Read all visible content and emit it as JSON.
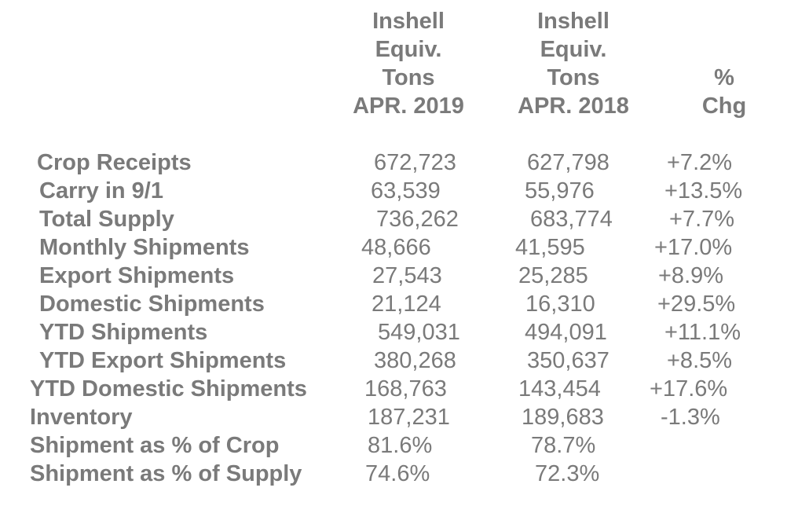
{
  "headers": {
    "col2019": [
      "Inshell",
      "Equiv.",
      "Tons",
      "APR. 2019"
    ],
    "col2018": [
      "Inshell",
      "Equiv.",
      "Tons",
      "APR. 2018"
    ],
    "chg": [
      "%",
      "Chg"
    ]
  },
  "rows": [
    {
      "label": "Crop Receipts",
      "v2019": "672,723",
      "v2018": "627,798",
      "chg": "+7.2%"
    },
    {
      "label": "Carry in 9/1",
      "v2019": "63,539",
      "v2018": "55,976",
      "chg": "+13.5%"
    },
    {
      "label": "Total Supply",
      "v2019": "736,262",
      "v2018": "683,774",
      "chg": "+7.7%"
    },
    {
      "label": "Monthly Shipments",
      "v2019": "48,666",
      "v2018": "41,595",
      "chg": "+17.0%"
    },
    {
      "label": "Export Shipments",
      "v2019": "27,543",
      "v2018": "25,285",
      "chg": "+8.9%"
    },
    {
      "label": "Domestic Shipments",
      "v2019": "21,124",
      "v2018": "16,310",
      "chg": "+29.5%"
    },
    {
      "label": "YTD Shipments",
      "v2019": "549,031",
      "v2018": "494,091",
      "chg": "+11.1%"
    },
    {
      "label": "YTD Export Shipments",
      "v2019": "380,268",
      "v2018": "350,637",
      "chg": "+8.5%"
    },
    {
      "label": "YTD Domestic Shipments",
      "v2019": "168,763",
      "v2018": "143,454",
      "chg": "+17.6%"
    },
    {
      "label": "Inventory",
      "v2019": "187,231",
      "v2018": "189,683",
      "chg": "-1.3%"
    },
    {
      "label": "Shipment as % of Crop",
      "v2019": "81.6%",
      "v2018": "78.7%",
      "chg": ""
    },
    {
      "label": "Shipment as % of Supply",
      "v2019": "74.6%",
      "v2018": "72.3%",
      "chg": ""
    }
  ]
}
